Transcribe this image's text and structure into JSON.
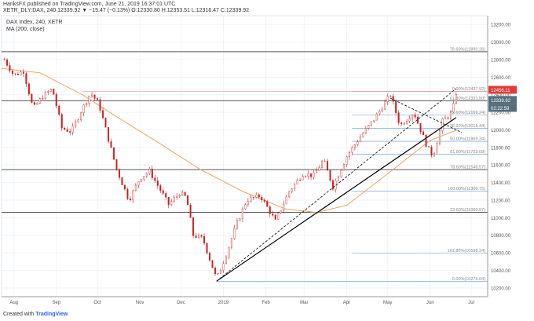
{
  "header": {
    "published": "HanksFX published on TradingView.com, June 21, 2019 16:37:01 UTC",
    "symbol_line": "XETR_DLY:DAX, 240  12339.92  ▼  −15.47 (−0.13%)  O:12330.80  H:12353.51  L:12316.47  C:12339.92",
    "legend_title": "DAX Index, 240, XETR",
    "legend_ma": "MA (200, close)"
  },
  "footer": {
    "created_with": "Created with",
    "brand": "TradingView"
  },
  "colors": {
    "candle": "#cc1f1f",
    "ma": "#f4a460",
    "fib": "#5b9bd5",
    "trend": "#000000",
    "price_tag": "#546e7a",
    "hi_tag": "#e53935"
  },
  "chart_data": {
    "type": "candlestick",
    "ylim": [
      10100,
      13300
    ],
    "y_ticks": [
      10200,
      10400,
      10600,
      10800,
      11000,
      11200,
      11400,
      11600,
      11800,
      12000,
      12200,
      12400,
      12600,
      12800,
      13000,
      13200
    ],
    "x_ticks": [
      "Aug",
      "Sep",
      "Oct",
      "Nov",
      "Dec",
      "2019",
      "Feb",
      "Mar",
      "Apr",
      "May",
      "Jun",
      "Jul"
    ],
    "x_tick_dates": [
      "2018-08-01",
      "2018-09-01",
      "2018-10-01",
      "2018-11-01",
      "2018-12-01",
      "2019-01-01",
      "2019-02-01",
      "2019-03-01",
      "2019-04-01",
      "2019-05-01",
      "2019-06-01",
      "2019-07-01"
    ],
    "x_range": [
      "2018-07-23",
      "2019-07-13"
    ],
    "closes": [
      [
        "2018-07-25",
        12800
      ],
      [
        "2018-08-01",
        12620
      ],
      [
        "2018-08-08",
        12670
      ],
      [
        "2018-08-15",
        12240
      ],
      [
        "2018-08-22",
        12380
      ],
      [
        "2018-08-29",
        12470
      ],
      [
        "2018-09-05",
        12020
      ],
      [
        "2018-09-12",
        11980
      ],
      [
        "2018-09-19",
        12210
      ],
      [
        "2018-09-26",
        12420
      ],
      [
        "2018-10-02",
        12300
      ],
      [
        "2018-10-08",
        11950
      ],
      [
        "2018-10-15",
        11550
      ],
      [
        "2018-10-24",
        11200
      ],
      [
        "2018-11-01",
        11450
      ],
      [
        "2018-11-08",
        11530
      ],
      [
        "2018-11-15",
        11340
      ],
      [
        "2018-11-22",
        11150
      ],
      [
        "2018-11-30",
        11280
      ],
      [
        "2018-12-05",
        11230
      ],
      [
        "2018-12-10",
        10800
      ],
      [
        "2018-12-17",
        10760
      ],
      [
        "2018-12-27",
        10300
      ],
      [
        "2019-01-03",
        10580
      ],
      [
        "2019-01-10",
        10900
      ],
      [
        "2019-01-18",
        11200
      ],
      [
        "2019-01-28",
        11250
      ],
      [
        "2019-02-08",
        10960
      ],
      [
        "2019-02-18",
        11300
      ],
      [
        "2019-02-28",
        11500
      ],
      [
        "2019-03-08",
        11480
      ],
      [
        "2019-03-15",
        11660
      ],
      [
        "2019-03-22",
        11350
      ],
      [
        "2019-04-01",
        11700
      ],
      [
        "2019-04-10",
        11900
      ],
      [
        "2019-04-20",
        12100
      ],
      [
        "2019-05-03",
        12400
      ],
      [
        "2019-05-10",
        12050
      ],
      [
        "2019-05-20",
        12200
      ],
      [
        "2019-05-30",
        11800
      ],
      [
        "2019-06-03",
        11700
      ],
      [
        "2019-06-10",
        12100
      ],
      [
        "2019-06-17",
        12200
      ],
      [
        "2019-06-20",
        12420
      ],
      [
        "2019-06-21",
        12340
      ]
    ],
    "ma200": [
      [
        "2018-07-23",
        12700
      ],
      [
        "2018-08-20",
        12650
      ],
      [
        "2018-09-20",
        12400
      ],
      [
        "2018-10-15",
        12150
      ],
      [
        "2018-11-15",
        11850
      ],
      [
        "2018-12-15",
        11550
      ],
      [
        "2019-01-15",
        11300
      ],
      [
        "2019-02-15",
        11100
      ],
      [
        "2019-03-10",
        11060
      ],
      [
        "2019-04-01",
        11140
      ],
      [
        "2019-05-01",
        11500
      ],
      [
        "2019-06-01",
        11880
      ],
      [
        "2019-06-21",
        12000
      ]
    ],
    "fib_upper": [
      {
        "label": "78.60%(12890.26)",
        "value": 12890.26,
        "from": "2018-07-23"
      },
      {
        "label": "0.00%(12437.92)",
        "value": 12437.92,
        "from": "2019-04-05"
      },
      {
        "label": "61.80%(12331.50)",
        "value": 12331.5,
        "from": "2018-07-23"
      },
      {
        "label": "23.60%(12169.24)",
        "value": 12169.24,
        "from": "2019-04-05"
      },
      {
        "label": "38.20%(12015.44)",
        "value": 12015.44,
        "from": "2019-04-05"
      },
      {
        "label": "50.00%(11869.34)",
        "value": 11869.34,
        "from": "2019-04-05"
      },
      {
        "label": "61.80%(11723.08)",
        "value": 11723.08,
        "from": "2019-04-05"
      },
      {
        "label": "78.60%(11546.57)",
        "value": 11546.57,
        "from": "2018-07-23"
      },
      {
        "label": "100.00%(11300.75)",
        "value": 11300.75,
        "from": "2019-04-05"
      },
      {
        "label": "23.60%(11060.97)",
        "value": 11060.97,
        "from": "2018-07-23"
      },
      {
        "label": "161.80%(10598.24)",
        "value": 10598.24,
        "from": "2019-04-05"
      },
      {
        "label": "0.00%(10276.04)",
        "value": 10276.04,
        "from": "2018-12-27"
      }
    ],
    "red_line": {
      "value": 12437.92,
      "from": "2018-09-20"
    },
    "trend_lines": [
      {
        "style": "solid",
        "from": [
          "2018-12-27",
          10276
        ],
        "to": [
          "2019-06-20",
          12140
        ]
      },
      {
        "style": "dashed",
        "from": [
          "2018-12-27",
          10276
        ],
        "to": [
          "2019-06-20",
          12470
        ]
      },
      {
        "style": "dashed",
        "from": [
          "2019-05-03",
          12360
        ],
        "to": [
          "2019-06-24",
          11970
        ]
      }
    ],
    "price_tags": [
      {
        "text": "12456.11",
        "value": 12456.11,
        "kind": "hi"
      },
      {
        "text": "12339.92",
        "value": 12339.92,
        "kind": "last"
      },
      {
        "text": "02:22:59",
        "value": 12250,
        "kind": "timer"
      }
    ]
  }
}
